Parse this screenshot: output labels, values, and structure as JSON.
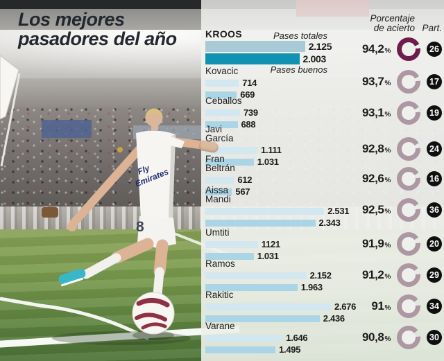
{
  "title": {
    "line1": "Los mejores",
    "line2": "pasadores del año"
  },
  "ui": {
    "percent_sign": "%"
  },
  "headers": {
    "accuracy_line1": "Porcentaje",
    "accuracy_line2": "de acierto",
    "part": "Part."
  },
  "legend": {
    "totales": "Pases totales",
    "buenos": "Pases buenos"
  },
  "photo": {
    "jersey_sponsor_line1": "Fly",
    "jersey_sponsor_line2": "Emirates",
    "shorts_number": "8"
  },
  "colors": {
    "bar_totales": "#d2e7ef",
    "bar_buenos": "#aad5e6",
    "bar_totales_highlight": "#a8c9d6",
    "bar_buenos_highlight": "#1092b0",
    "donut": "#ad97a3",
    "donut_highlight": "#6e1c4b",
    "badge_bg": "#0f0f0f",
    "badge_text": "#ffffff"
  },
  "chart_data": {
    "type": "bar",
    "title": "Los mejores pasadores del año",
    "series_labels": [
      "Pases totales",
      "Pases buenos"
    ],
    "max_value": 2676,
    "legend_position": "inline-top",
    "players": [
      {
        "name_line1": "KROOS",
        "name_line2": "",
        "totales": 2125,
        "totales_label": "2.125",
        "buenos": 2003,
        "buenos_label": "2.003",
        "accuracy": 94.2,
        "accuracy_label": "94,2",
        "part": "26",
        "highlight": true
      },
      {
        "name_line1": "Kovacic",
        "name_line2": "",
        "totales": 714,
        "totales_label": "714",
        "buenos": 669,
        "buenos_label": "669",
        "accuracy": 93.7,
        "accuracy_label": "93,7",
        "part": "17",
        "highlight": false
      },
      {
        "name_line1": "Ceballos",
        "name_line2": "",
        "totales": 739,
        "totales_label": "739",
        "buenos": 688,
        "buenos_label": "688",
        "accuracy": 93.1,
        "accuracy_label": "93,1",
        "part": "19",
        "highlight": false
      },
      {
        "name_line1": "Javi",
        "name_line2": "García",
        "totales": 1111,
        "totales_label": "1.111",
        "buenos": 1031,
        "buenos_label": "1.031",
        "accuracy": 92.8,
        "accuracy_label": "92,8",
        "part": "24",
        "highlight": false
      },
      {
        "name_line1": "Fran",
        "name_line2": "Beltrán",
        "totales": 612,
        "totales_label": "612",
        "buenos": 567,
        "buenos_label": "567",
        "accuracy": 92.6,
        "accuracy_label": "92,6",
        "part": "16",
        "highlight": false
      },
      {
        "name_line1": "Aissa",
        "name_line2": "Mandi",
        "totales": 2531,
        "totales_label": "2.531",
        "buenos": 2343,
        "buenos_label": "2.343",
        "accuracy": 92.5,
        "accuracy_label": "92,5",
        "part": "36",
        "highlight": false
      },
      {
        "name_line1": "Umtiti",
        "name_line2": "",
        "totales": 1121,
        "totales_label": "1121",
        "buenos": 1031,
        "buenos_label": "1.031",
        "accuracy": 91.9,
        "accuracy_label": "91,9",
        "part": "20",
        "highlight": false
      },
      {
        "name_line1": "Ramos",
        "name_line2": "",
        "totales": 2152,
        "totales_label": "2.152",
        "buenos": 1963,
        "buenos_label": "1.963",
        "accuracy": 91.2,
        "accuracy_label": "91,2",
        "part": "29",
        "highlight": false
      },
      {
        "name_line1": "Rakitic",
        "name_line2": "",
        "totales": 2676,
        "totales_label": "2.676",
        "buenos": 2436,
        "buenos_label": "2.436",
        "accuracy": 91.0,
        "accuracy_label": "91",
        "part": "34",
        "highlight": false
      },
      {
        "name_line1": "Varane",
        "name_line2": "",
        "totales": 1646,
        "totales_label": "1.646",
        "buenos": 1495,
        "buenos_label": "1.495",
        "accuracy": 90.8,
        "accuracy_label": "90,8",
        "part": "30",
        "highlight": false
      }
    ]
  }
}
